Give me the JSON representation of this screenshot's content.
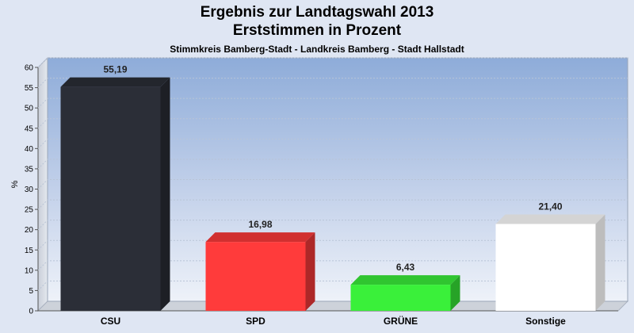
{
  "chart_data": {
    "type": "bar",
    "title": "Ergebnis zur Landtagswahl 2013",
    "subtitle": "Erststimmen in Prozent",
    "subsubtitle": "Stimmkreis Bamberg-Stadt - Landkreis Bamberg - Stadt Hallstadt",
    "ylabel": "%",
    "xlabel": "",
    "ylim": [
      0,
      60
    ],
    "ytick_step": 5,
    "categories": [
      "CSU",
      "SPD",
      "GRÜNE",
      "Sonstige"
    ],
    "values": [
      55.19,
      16.98,
      6.43,
      21.4
    ],
    "value_labels": [
      "55,19",
      "16,98",
      "6,43",
      "21,40"
    ],
    "colors": [
      "#2b2e37",
      "#ff3b3b",
      "#3af03a",
      "#ffffff"
    ],
    "grid": true,
    "legend": "none"
  }
}
